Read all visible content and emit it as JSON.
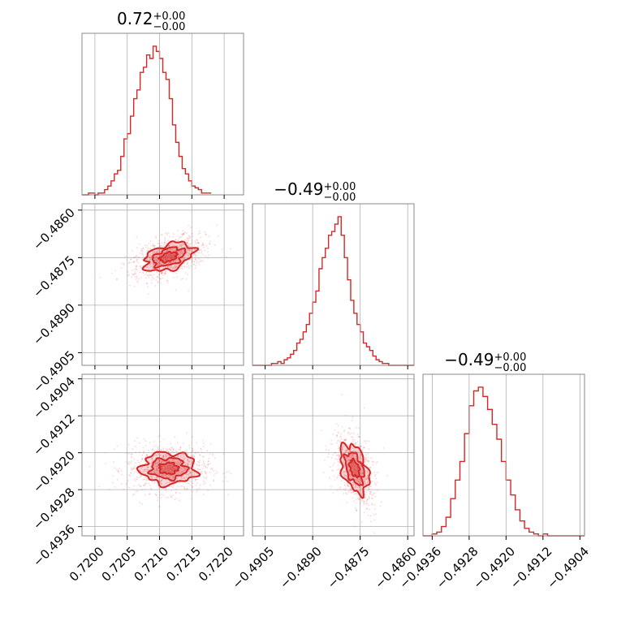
{
  "chart_data": {
    "type": "corner",
    "colors": {
      "line": "#d62728",
      "frame": "#888888",
      "grid": "#b0b0b0"
    },
    "parameters": [
      {
        "title": {
          "value": "0.72",
          "plus": "+0.00",
          "minus": "−0.00"
        },
        "range": [
          0.7198,
          0.7223
        ],
        "ticks": [
          0.72,
          0.7205,
          0.721,
          0.7215,
          0.722
        ],
        "tick_labels": [
          "0.7200",
          "0.7205",
          "0.7210",
          "0.7215",
          "0.7220"
        ],
        "hist": {
          "start": 0.7198,
          "bin_width": 5e-05,
          "counts": [
            0,
            0,
            1,
            1,
            0,
            1,
            1,
            3,
            5,
            8,
            12,
            14,
            22,
            32,
            35,
            45,
            55,
            60,
            70,
            73,
            80,
            78,
            85,
            82,
            78,
            70,
            66,
            55,
            40,
            30,
            22,
            15,
            12,
            8,
            5,
            4,
            3,
            1,
            1,
            1
          ]
        }
      },
      {
        "title": {
          "value": "−0.49",
          "plus": "+0.00",
          "minus": "−0.00"
        },
        "range": [
          -0.4909,
          -0.4858
        ],
        "ticks": [
          -0.4905,
          -0.489,
          -0.4875,
          -0.486
        ],
        "tick_labels": [
          "−0.4905",
          "−0.4890",
          "−0.4875",
          "−0.4860"
        ],
        "hist": {
          "start": -0.4909,
          "bin_width": 0.0001,
          "counts": [
            0,
            0,
            0,
            0,
            0,
            0,
            1,
            1,
            2,
            1,
            3,
            4,
            6,
            8,
            12,
            14,
            18,
            22,
            28,
            34,
            40,
            52,
            58,
            63,
            70,
            72,
            76,
            80,
            70,
            58,
            46,
            35,
            28,
            22,
            18,
            12,
            10,
            8,
            5,
            3,
            2,
            1,
            1,
            0,
            0,
            0,
            0,
            0,
            0,
            0,
            0
          ]
        }
      },
      {
        "title": {
          "value": "−0.49",
          "plus": "+0.00",
          "minus": "−0.00"
        },
        "range": [
          -0.4938,
          -0.4903
        ],
        "ticks": [
          -0.4936,
          -0.4928,
          -0.492,
          -0.4912,
          -0.4904
        ],
        "tick_labels": [
          "−0.4936",
          "−0.4928",
          "−0.4920",
          "−0.4912",
          "−0.4904"
        ],
        "hist": {
          "start": -0.4938,
          "bin_width": 0.0001,
          "counts": [
            0,
            0,
            1,
            2,
            5,
            10,
            20,
            30,
            40,
            55,
            70,
            78,
            80,
            75,
            68,
            60,
            52,
            40,
            30,
            22,
            14,
            8,
            4,
            2,
            1,
            0,
            1,
            0,
            0,
            0,
            0,
            0,
            0,
            0,
            0
          ]
        }
      }
    ],
    "pairs": [
      {
        "row": 1,
        "col": 0,
        "center": [
          0.72114,
          -0.48748
        ],
        "spread": [
          0.00025,
          0.00035
        ],
        "tilt": 35,
        "levels": [
          0.45,
          0.85,
          1.3
        ],
        "n_points": 900
      },
      {
        "row": 2,
        "col": 0,
        "center": [
          0.72114,
          -0.49234
        ],
        "spread": [
          0.00025,
          0.00033
        ],
        "tilt": 0,
        "levels": [
          0.45,
          0.85,
          1.3
        ],
        "n_points": 900
      },
      {
        "row": 2,
        "col": 1,
        "center": [
          -0.48768,
          -0.49234
        ],
        "spread": [
          0.00035,
          0.00035
        ],
        "tilt": -55,
        "levels": [
          0.45,
          0.85,
          1.3
        ],
        "n_points": 700
      }
    ]
  }
}
